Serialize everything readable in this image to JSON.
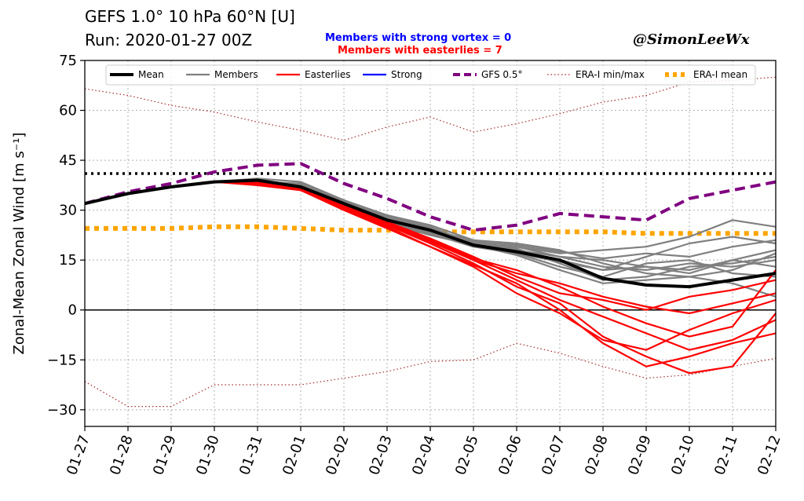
{
  "header": {
    "title_line1": "GEFS 1.0°  10 hPa 60°N [U]",
    "title_line2": "Run: 2020-01-27 00Z",
    "strong_vortex_note": "Members with strong vortex = 0",
    "easterlies_note": "Members with easterlies = 7",
    "credit": "@SimonLeeWx"
  },
  "colors": {
    "mean": "#000000",
    "members": "#808080",
    "easterlies": "#ff0000",
    "strong": "#0000ff",
    "gfs": "#800080",
    "era_minmax": "#a52a2a",
    "era_mean": "#ffa500",
    "threshold": "#000000"
  },
  "chart_data": {
    "type": "line",
    "title": "GEFS 1.0°  10 hPa 60°N [U]",
    "subtitle": "Run: 2020-01-27 00Z",
    "xlabel": "",
    "ylabel": "Zonal-Mean Zonal Wind [m s⁻¹]",
    "xlim": [
      "2020-01-27",
      "2020-02-12"
    ],
    "ylim": [
      -35,
      75
    ],
    "x_tick_labels": [
      "01-27",
      "01-28",
      "01-29",
      "01-30",
      "01-31",
      "02-01",
      "02-02",
      "02-03",
      "02-04",
      "02-05",
      "02-06",
      "02-07",
      "02-08",
      "02-09",
      "02-10",
      "02-11",
      "02-12"
    ],
    "y_ticks": [
      75,
      60,
      45,
      30,
      15,
      0,
      -15,
      -30
    ],
    "y_tick_labels": [
      "75",
      "60",
      "45",
      "30",
      "15",
      "0",
      "−15",
      "−30"
    ],
    "grid": true,
    "legend_position": "top",
    "zero_line": 0,
    "threshold_line": 41,
    "legend": [
      "Mean",
      "Members",
      "Easterlies",
      "Strong",
      "GFS 0.5°",
      "ERA-I min/max",
      "ERA-I mean"
    ],
    "x": [
      "2020-01-27",
      "2020-01-28",
      "2020-01-29",
      "2020-01-30",
      "2020-01-31",
      "2020-02-01",
      "2020-02-02",
      "2020-02-03",
      "2020-02-04",
      "2020-02-05",
      "2020-02-06",
      "2020-02-07",
      "2020-02-08",
      "2020-02-09",
      "2020-02-10",
      "2020-02-11",
      "2020-02-12"
    ],
    "series": [
      {
        "name": "Mean",
        "values": [
          32,
          35,
          37,
          38.5,
          39,
          37,
          32,
          27,
          24,
          19.5,
          17.5,
          15,
          9.5,
          7.5,
          7,
          9,
          11
        ]
      },
      {
        "name": "GFS 0.5°",
        "values": [
          32,
          35.5,
          38,
          41.5,
          43.5,
          44,
          38,
          33.5,
          28,
          24,
          25.5,
          29,
          28,
          27,
          33.5,
          36,
          38.5
        ]
      },
      {
        "name": "ERA-I mean",
        "values": [
          24.5,
          24.5,
          24.5,
          25,
          25,
          24.5,
          24,
          24,
          23.5,
          23.5,
          23.5,
          23.5,
          23.5,
          23,
          23,
          23,
          23
        ]
      },
      {
        "name": "ERA-I min/max",
        "values": [
          66.5,
          64.5,
          61.5,
          59.5,
          56.5,
          54,
          51,
          55,
          58,
          53.5,
          56,
          59,
          62.5,
          64.5,
          68.5,
          69,
          70
        ]
      },
      {
        "name": "ERA-I min/max",
        "values": [
          -21.5,
          -29,
          -29,
          -22.5,
          -22.5,
          -22.5,
          -20.5,
          -18.5,
          -15.5,
          -15,
          -10,
          -13,
          -17,
          -20.5,
          -19.5,
          -17,
          -14.5
        ]
      },
      {
        "name": "Members",
        "values": [
          32,
          35,
          37,
          38.5,
          38.5,
          37,
          32,
          27,
          23,
          19,
          19,
          17,
          18,
          19,
          22,
          27,
          25
        ]
      },
      {
        "name": "Members",
        "values": [
          32,
          35,
          37,
          38.5,
          39,
          36.5,
          31,
          26.5,
          23.5,
          20,
          19,
          16,
          13,
          12,
          14,
          13,
          15
        ]
      },
      {
        "name": "Members",
        "values": [
          32,
          35,
          37,
          38.5,
          38.5,
          37,
          32,
          27,
          24,
          21,
          20,
          18,
          14,
          11,
          10,
          12,
          17
        ]
      },
      {
        "name": "Members",
        "values": [
          32,
          35,
          37,
          38.5,
          39.5,
          38.5,
          33,
          28,
          25,
          20,
          17,
          13,
          10,
          14,
          15,
          11,
          10
        ]
      },
      {
        "name": "Members",
        "values": [
          32,
          35,
          37,
          38.5,
          38,
          37,
          31.5,
          26.5,
          23,
          19,
          17,
          14.5,
          12,
          16,
          20,
          22,
          20
        ]
      },
      {
        "name": "Members",
        "values": [
          32,
          35,
          37,
          38.5,
          38.5,
          38,
          33,
          28.5,
          25.5,
          21,
          18,
          16,
          15,
          13,
          11,
          15,
          18
        ]
      },
      {
        "name": "Members",
        "values": [
          32,
          35,
          37,
          38.5,
          39,
          37.5,
          32,
          27.5,
          24,
          20,
          18.5,
          14,
          9,
          10,
          13,
          14,
          16
        ]
      },
      {
        "name": "Members",
        "values": [
          32,
          35,
          37,
          38.5,
          39,
          37,
          31,
          26,
          22.5,
          19.5,
          16.5,
          12,
          8,
          9,
          10,
          8,
          4
        ]
      },
      {
        "name": "Members",
        "values": [
          32,
          35,
          37,
          38.5,
          38.5,
          36.5,
          31.5,
          27,
          24,
          20.5,
          19.5,
          17.5,
          15.5,
          17,
          16,
          19,
          21
        ]
      },
      {
        "name": "Members",
        "values": [
          32,
          35,
          37,
          38.5,
          39,
          37.5,
          32.5,
          28,
          24.5,
          20,
          18,
          15,
          12,
          13,
          12,
          15,
          13
        ]
      },
      {
        "name": "Easterlies",
        "values": [
          32,
          35,
          37,
          38.5,
          38.5,
          36.5,
          31,
          26,
          21,
          15,
          9,
          3,
          -2,
          -7,
          -12,
          -9,
          -3
        ]
      },
      {
        "name": "Easterlies",
        "values": [
          32,
          35,
          37,
          38.5,
          39,
          37,
          31,
          25.5,
          20,
          14,
          7,
          2,
          -8,
          -14,
          -19,
          -17,
          -1
        ]
      },
      {
        "name": "Easterlies",
        "values": [
          32,
          35,
          37,
          38.5,
          37.5,
          36,
          30.5,
          25,
          19,
          13,
          5,
          -1,
          -9,
          -12,
          -6,
          -1,
          3
        ]
      },
      {
        "name": "Easterlies",
        "values": [
          32,
          35,
          37,
          38.5,
          38.5,
          36.5,
          31.5,
          26.5,
          21.5,
          16,
          10,
          5,
          3,
          0,
          4,
          6,
          9
        ]
      },
      {
        "name": "Easterlies",
        "values": [
          32,
          35,
          37,
          38.5,
          39,
          37,
          31,
          25.5,
          20.5,
          15,
          11,
          8,
          4,
          1,
          -1,
          2,
          5
        ]
      },
      {
        "name": "Easterlies",
        "values": [
          32,
          35,
          37,
          38.5,
          38,
          36,
          30,
          24.5,
          19,
          13.5,
          8,
          0,
          -10,
          -17,
          -14,
          -10,
          -7
        ]
      },
      {
        "name": "Easterlies",
        "values": [
          32,
          35,
          37,
          38.5,
          38.5,
          37,
          31.5,
          26,
          21,
          15.5,
          12,
          7,
          1,
          -4,
          -8,
          -5,
          12
        ]
      }
    ]
  }
}
